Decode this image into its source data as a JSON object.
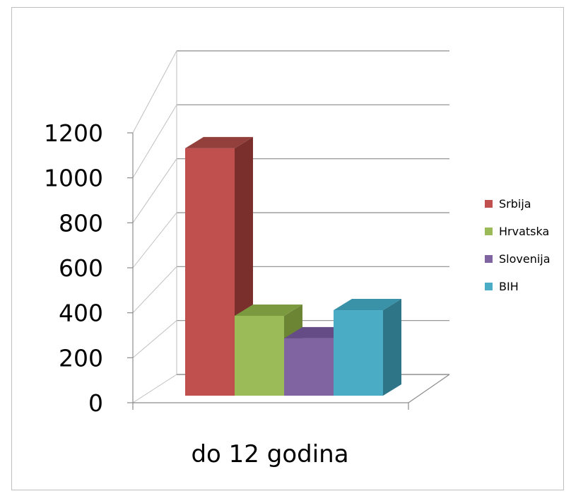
{
  "chart_data": {
    "type": "bar",
    "style": "3d-column",
    "categories": [
      "do 12 godina"
    ],
    "series": [
      {
        "name": "Srbija",
        "values": [
          1100
        ],
        "color": "#C0504D",
        "side": "#7B2F2D",
        "top": "#93403D"
      },
      {
        "name": "Hrvatska",
        "values": [
          355
        ],
        "color": "#9BBB59",
        "side": "#6B8535",
        "top": "#7B9A40"
      },
      {
        "name": "Slovenija",
        "values": [
          255
        ],
        "color": "#8064A2",
        "side": "#55407A",
        "top": "#654C86"
      },
      {
        "name": "BIH",
        "values": [
          380
        ],
        "color": "#4BACC6",
        "side": "#2E7587",
        "top": "#3A92A8"
      }
    ],
    "yticks": [
      0,
      200,
      400,
      600,
      800,
      1000,
      1200
    ],
    "ylim": [
      0,
      1200
    ],
    "grid": true,
    "legend_position": "right",
    "title": "",
    "xlabel": "",
    "ylabel": ""
  }
}
